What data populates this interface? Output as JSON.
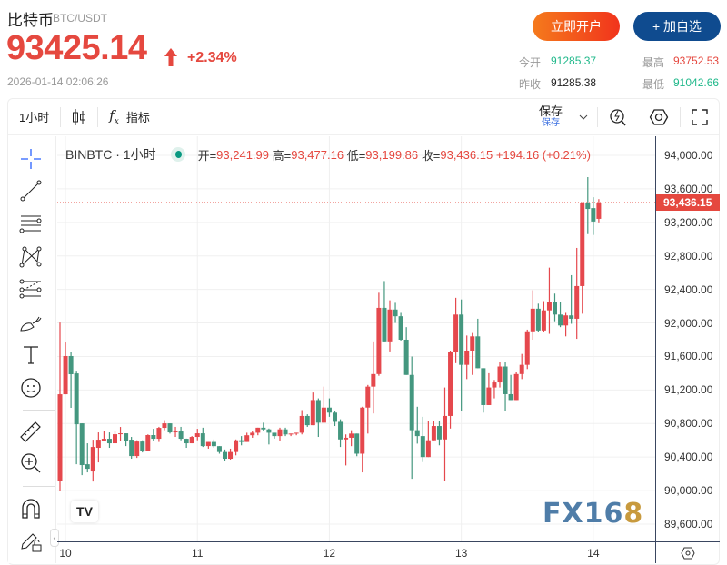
{
  "header": {
    "name": "比特币",
    "pair": "BTC/USDT",
    "price": "93425.14",
    "change": "+2.34%",
    "time": "2026-01-14 02:06:26",
    "open_button": "立即开户",
    "watch_button": "+ 加自选",
    "stats": {
      "open_label": "今开",
      "open": "91285.37",
      "high_label": "最高",
      "high": "93752.53",
      "prev_label": "昨收",
      "prev": "91285.38",
      "low_label": "最低",
      "low": "91042.66"
    }
  },
  "toolbar": {
    "interval": "1小时",
    "indicators": "指标",
    "save": "保存",
    "save_sub": "保存"
  },
  "legend": {
    "symbol": "BINBTC · 1小时",
    "o_label": "开=",
    "o": "93,241.99",
    "h_label": "高=",
    "h": "93,477.16",
    "l_label": "低=",
    "l": "93,199.86",
    "c_label": "收=",
    "c": "93,436.15",
    "change": "+194.16 (+0.21%)"
  },
  "watermark": {
    "text": "FX16",
    "accent": "8"
  },
  "colors": {
    "up": "#e5484d",
    "down": "#44977f",
    "accent": "#e5483f"
  },
  "sidebar_tools": [
    "crosshair-icon",
    "trend-line-icon",
    "parallel-lines-icon",
    "pattern-icon",
    "fib-icon",
    "brush-icon",
    "text-icon",
    "emoji-icon",
    "ruler-icon",
    "zoom-in-icon",
    "magnet-icon",
    "lock-draw-icon"
  ],
  "chart_data": {
    "type": "candlestick",
    "ylim": [
      89400,
      94250
    ],
    "y_ticks": [
      "89,600.00",
      "90,000.00",
      "90,400.00",
      "90,800.00",
      "91,200.00",
      "91,600.00",
      "92,000.00",
      "92,400.00",
      "92,800.00",
      "93,200.00",
      "93,600.00",
      "94,000.00"
    ],
    "y_tick_values": [
      89600,
      90000,
      90400,
      90800,
      91200,
      91600,
      92000,
      92400,
      92800,
      93200,
      93600,
      94000
    ],
    "last_price": "93,436.15",
    "last_value": 93436.15,
    "x_ticks": [
      {
        "label": "10",
        "index": 1
      },
      {
        "label": "11",
        "index": 25
      },
      {
        "label": "12",
        "index": 49
      },
      {
        "label": "13",
        "index": 73
      },
      {
        "label": "14",
        "index": 97
      }
    ],
    "ohlc": [
      [
        90119,
        92005,
        90000,
        91149
      ],
      [
        91149,
        91767,
        91149,
        91605
      ],
      [
        91605,
        91659,
        90987,
        91388
      ],
      [
        91398,
        91430,
        90314,
        90791
      ],
      [
        90802,
        90802,
        90184,
        90304
      ],
      [
        90314,
        90564,
        90217,
        90260
      ],
      [
        90228,
        90607,
        90108,
        90520
      ],
      [
        90510,
        90694,
        90336,
        90607
      ],
      [
        90597,
        90716,
        90597,
        90618
      ],
      [
        90618,
        90694,
        90510,
        90564
      ],
      [
        90564,
        90716,
        90564,
        90672
      ],
      [
        90672,
        90759,
        90586,
        90683
      ],
      [
        90683,
        90683,
        90531,
        90586
      ],
      [
        90607,
        90640,
        90380,
        90412
      ],
      [
        90412,
        90600,
        90390,
        90585
      ],
      [
        90585,
        90600,
        90455,
        90477
      ],
      [
        90477,
        90670,
        90477,
        90662
      ],
      [
        90662,
        90737,
        90590,
        90618
      ],
      [
        90618,
        90760,
        90580,
        90748
      ],
      [
        90748,
        90840,
        90720,
        90802
      ],
      [
        90802,
        90802,
        90680,
        90694
      ],
      [
        90694,
        90760,
        90640,
        90705
      ],
      [
        90705,
        90760,
        90600,
        90618
      ],
      [
        90618,
        90620,
        90510,
        90564
      ],
      [
        90564,
        90650,
        90564,
        90640
      ],
      [
        90640,
        90737,
        90600,
        90683
      ],
      [
        90683,
        90750,
        90520,
        90531
      ],
      [
        90531,
        90580,
        90500,
        90580
      ],
      [
        90580,
        90610,
        90510,
        90530
      ],
      [
        90530,
        90530,
        90440,
        90460
      ],
      [
        90460,
        90490,
        90350,
        90380
      ],
      [
        90380,
        90500,
        90370,
        90460
      ],
      [
        90460,
        90610,
        90420,
        90600
      ],
      [
        90600,
        90650,
        90540,
        90580
      ],
      [
        90580,
        90690,
        90580,
        90660
      ],
      [
        90660,
        90710,
        90630,
        90690
      ],
      [
        90690,
        90750,
        90660,
        90750
      ],
      [
        90750,
        90810,
        90710,
        90730
      ],
      [
        90730,
        90740,
        90550,
        90690
      ],
      [
        90690,
        90690,
        90620,
        90650
      ],
      [
        90650,
        90750,
        90590,
        90730
      ],
      [
        90730,
        90750,
        90650,
        90670
      ],
      [
        90670,
        90680,
        90650,
        90680
      ],
      [
        90680,
        90690,
        90660,
        90690
      ],
      [
        90690,
        90960,
        90670,
        90890
      ],
      [
        90890,
        90910,
        90760,
        90780
      ],
      [
        90780,
        91170,
        90780,
        91080
      ],
      [
        91080,
        91100,
        90640,
        90810
      ],
      [
        90810,
        91240,
        90810,
        90990
      ],
      [
        90990,
        91100,
        90880,
        90930
      ],
      [
        90930,
        90950,
        90770,
        90820
      ],
      [
        90820,
        90850,
        90520,
        90610
      ],
      [
        90610,
        90670,
        90300,
        90630
      ],
      [
        90630,
        90720,
        90530,
        90680
      ],
      [
        90680,
        90680,
        90410,
        90440
      ],
      [
        90440,
        91000,
        90217,
        90990
      ],
      [
        90990,
        91260,
        90680,
        91240
      ],
      [
        91240,
        91780,
        90920,
        91390
      ],
      [
        91390,
        92360,
        91370,
        92180
      ],
      [
        92180,
        92500,
        91780,
        91780
      ],
      [
        91780,
        92270,
        91660,
        92160
      ],
      [
        92160,
        92240,
        92000,
        92080
      ],
      [
        92080,
        92120,
        91790,
        91800
      ],
      [
        91800,
        91950,
        91380,
        91380
      ],
      [
        91380,
        91600,
        90140,
        90720
      ],
      [
        90720,
        91000,
        90560,
        90650
      ],
      [
        90650,
        90880,
        90340,
        90400
      ],
      [
        90400,
        90830,
        90400,
        90600
      ],
      [
        90600,
        90830,
        90600,
        90770
      ],
      [
        90770,
        90830,
        90540,
        90610
      ],
      [
        90610,
        91230,
        90110,
        90890
      ],
      [
        90890,
        91670,
        90740,
        91650
      ],
      [
        91650,
        92300,
        91520,
        92100
      ],
      [
        92100,
        92280,
        90950,
        91500
      ],
      [
        91500,
        91850,
        91330,
        91670
      ],
      [
        91670,
        91880,
        91380,
        91840
      ],
      [
        91840,
        92050,
        91460,
        91460
      ],
      [
        91460,
        91460,
        90930,
        91020
      ],
      [
        91020,
        91400,
        91020,
        91230
      ],
      [
        91230,
        91320,
        91100,
        91290
      ],
      [
        91290,
        91530,
        91230,
        91480
      ],
      [
        91480,
        91530,
        90950,
        91150
      ],
      [
        91150,
        91380,
        91080,
        91080
      ],
      [
        91080,
        91410,
        91080,
        91390
      ],
      [
        91390,
        91630,
        91330,
        91500
      ],
      [
        91500,
        91920,
        91450,
        91900
      ],
      [
        91900,
        92390,
        91800,
        92170
      ],
      [
        92170,
        92230,
        91890,
        91910
      ],
      [
        91910,
        92260,
        91890,
        92150
      ],
      [
        92150,
        92660,
        91870,
        92250
      ],
      [
        92250,
        92350,
        92020,
        92100
      ],
      [
        92100,
        92250,
        91950,
        91970
      ],
      [
        91970,
        92120,
        91840,
        92090
      ],
      [
        92090,
        92570,
        91990,
        92050
      ],
      [
        92050,
        92895,
        91810,
        92440
      ],
      [
        92440,
        93440,
        92110,
        93430
      ],
      [
        93430,
        93740,
        93060,
        93360
      ],
      [
        93370,
        93500,
        93050,
        93210
      ],
      [
        93241.99,
        93477.16,
        93199.86,
        93436.15
      ]
    ]
  }
}
